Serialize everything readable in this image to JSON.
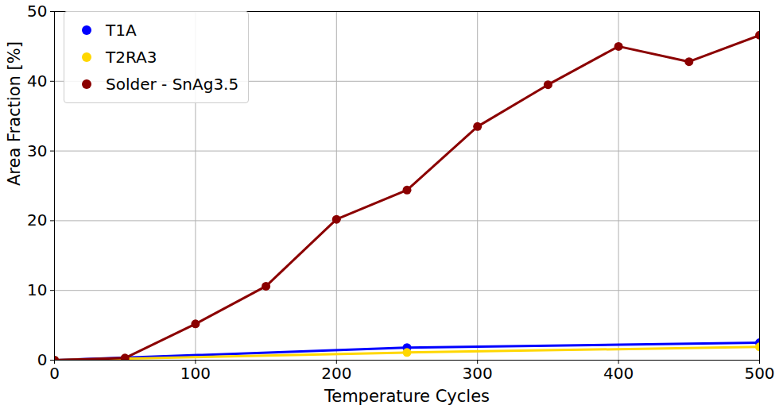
{
  "chart_data": {
    "type": "line",
    "x_label": "Temperature Cycles",
    "y_label": "Area Fraction [%]",
    "series": [
      {
        "name": "T1A",
        "color": "#0000ff",
        "marker": "circle",
        "x": [
          0,
          250,
          500
        ],
        "values": [
          0,
          1.8,
          2.5
        ]
      },
      {
        "name": "T2RA3",
        "color": "#ffd700",
        "marker": "circle",
        "x": [
          0,
          250,
          500
        ],
        "values": [
          0,
          1.1,
          1.9
        ]
      },
      {
        "name": "Solder - SnAg3.5",
        "color": "#8b0000",
        "marker": "circle",
        "x": [
          0,
          50,
          100,
          150,
          200,
          250,
          300,
          350,
          400,
          450,
          500
        ],
        "values": [
          0,
          0.3,
          5.2,
          10.6,
          20.2,
          24.4,
          33.5,
          39.5,
          45.0,
          42.8,
          46.6
        ]
      }
    ],
    "xlim": [
      0,
      500
    ],
    "xticks": [
      0,
      100,
      200,
      300,
      400,
      500
    ],
    "ylim": [
      0,
      50
    ],
    "yticks": [
      0,
      10,
      20,
      30,
      40,
      50
    ],
    "grid": true,
    "legend": "upper left"
  }
}
